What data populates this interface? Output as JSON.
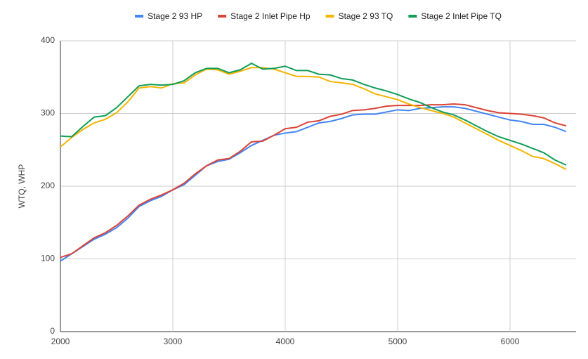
{
  "chart_data": {
    "type": "line",
    "y_label": "WTQ, WHP",
    "x": [
      2000,
      2100,
      2200,
      2300,
      2400,
      2500,
      2600,
      2700,
      2800,
      2900,
      3000,
      3100,
      3200,
      3300,
      3400,
      3500,
      3600,
      3700,
      3800,
      3900,
      4000,
      4100,
      4200,
      4300,
      4400,
      4500,
      4600,
      4700,
      4800,
      4900,
      5000,
      5100,
      5200,
      5300,
      5400,
      5500,
      5600,
      5700,
      5800,
      5900,
      6000,
      6100,
      6200,
      6300,
      6400,
      6500
    ],
    "series": [
      {
        "name": "Stage 2 93 HP",
        "color": "#4285f4",
        "values": [
          97,
          107,
          117,
          127,
          134,
          143,
          156,
          172,
          180,
          186,
          195,
          202,
          215,
          228,
          234,
          237,
          246,
          256,
          263,
          270,
          273,
          275,
          281,
          287,
          289,
          293,
          298,
          299,
          299,
          302,
          305,
          304,
          307,
          308,
          309,
          309,
          307,
          303,
          299,
          295,
          291,
          289,
          285,
          285,
          281,
          275
        ]
      },
      {
        "name": "Stage 2 Inlet Pipe Hp",
        "color": "#db4437",
        "values": [
          102,
          107,
          118,
          129,
          136,
          146,
          159,
          174,
          182,
          188,
          195,
          204,
          217,
          228,
          236,
          238,
          248,
          261,
          262,
          270,
          279,
          281,
          288,
          290,
          296,
          299,
          304,
          305,
          307,
          310,
          311,
          311,
          311,
          312,
          312,
          313,
          312,
          308,
          304,
          301,
          300,
          299,
          297,
          294,
          287,
          283
        ]
      },
      {
        "name": "Stage 2 93 TQ",
        "color": "#f4b400",
        "values": [
          254,
          267,
          278,
          287,
          292,
          301,
          316,
          335,
          337,
          335,
          341,
          342,
          353,
          361,
          360,
          354,
          358,
          363,
          363,
          361,
          356,
          351,
          351,
          350,
          344,
          342,
          340,
          334,
          327,
          323,
          319,
          313,
          308,
          304,
          300,
          295,
          287,
          279,
          271,
          263,
          256,
          249,
          241,
          238,
          231,
          223
        ]
      },
      {
        "name": "Stage 2 Inlet Pipe TQ",
        "color": "#0f9d58",
        "values": [
          269,
          268,
          282,
          295,
          297,
          308,
          323,
          338,
          340,
          339,
          340,
          345,
          356,
          362,
          362,
          356,
          360,
          369,
          361,
          362,
          365,
          359,
          359,
          354,
          353,
          348,
          346,
          340,
          335,
          331,
          326,
          320,
          315,
          308,
          302,
          298,
          291,
          283,
          275,
          268,
          263,
          258,
          252,
          246,
          236,
          229
        ]
      }
    ],
    "xlim": [
      2000,
      6500
    ],
    "xticks": [
      2000,
      3000,
      4000,
      5000,
      6000
    ],
    "ylim": [
      0,
      400
    ],
    "yticks": [
      0,
      100,
      200,
      300,
      400
    ],
    "grid": true
  }
}
